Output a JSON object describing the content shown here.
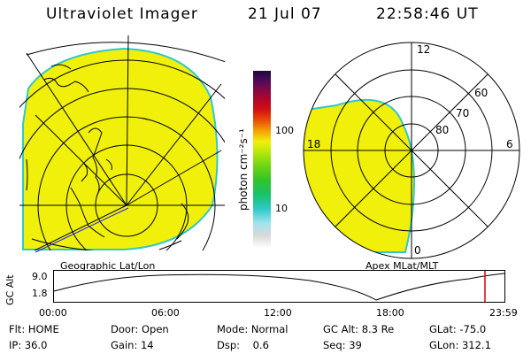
{
  "header": {
    "instrument": "Ultraviolet Imager",
    "date": "21 Jul 07",
    "time": "22:58:46 UT"
  },
  "geo_map": {
    "label": "Geographic Lat/Lon"
  },
  "colorbar": {
    "unit_label": "photon cm⁻²s⁻¹",
    "ticks": [
      "100",
      "10"
    ],
    "colors": [
      "#d8d8d8",
      "#9fe4ee",
      "#2ec9c9",
      "#18c26a",
      "#2fc42a",
      "#6ed414",
      "#b4e80c",
      "#f2f00a",
      "#f5a204",
      "#e84e06",
      "#d40e12",
      "#b0062a",
      "#7a0a4a",
      "#4a0a5c",
      "#1a0a32"
    ]
  },
  "apex_map": {
    "label": "Apex MLat/MLT",
    "mlt_labels": [
      "12",
      "18",
      "6",
      "0"
    ],
    "lat_labels": [
      "60",
      "70",
      "80"
    ]
  },
  "altitude_plot": {
    "ylabel": "GC Alt",
    "yticks": [
      "9.0",
      "1.8"
    ],
    "xticks": [
      "00:00",
      "06:00",
      "12:00",
      "18:00",
      "23:59"
    ],
    "current_time_marker": "22:58"
  },
  "status": {
    "row1": [
      {
        "label": "Flt:",
        "value": "HOME"
      },
      {
        "label": "Door:",
        "value": "Open"
      },
      {
        "label": "Mode:",
        "value": "Normal"
      },
      {
        "label": "GC Alt:",
        "value": "8.3 Re"
      },
      {
        "label": "GLat:",
        "value": "-75.0"
      }
    ],
    "row2": [
      {
        "label": "IP:",
        "value": "36.0"
      },
      {
        "label": "Gain:",
        "value": "14"
      },
      {
        "label": "Dsp:",
        "value": "0.6"
      },
      {
        "label": "Seq:",
        "value": "39"
      },
      {
        "label": "GLon:",
        "value": "312.1"
      }
    ]
  },
  "colors": {
    "emission_fill": "#f0f00a",
    "emission_edge": "#2ec9c9"
  }
}
